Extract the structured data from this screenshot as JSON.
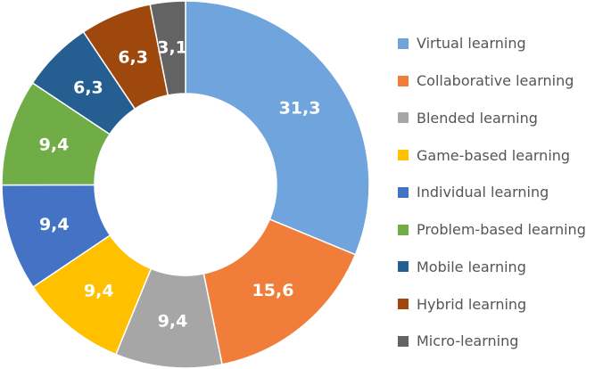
{
  "chart_data": {
    "type": "pie",
    "donut": true,
    "legend_position": "right",
    "categories": [
      "Virtual learning",
      "Collaborative learning",
      "Blended learning",
      "Game-based learning",
      "Individual learning",
      "Problem-based learning",
      "Mobile learning",
      "Hybrid learning",
      "Micro-learning"
    ],
    "values": [
      31.3,
      15.6,
      9.4,
      9.4,
      9.4,
      9.4,
      6.3,
      6.3,
      3.1
    ],
    "data_labels": [
      "31,3",
      "15,6",
      "9,4",
      "9,4",
      "9,4",
      "9,4",
      "6,3",
      "6,3",
      "3,1"
    ],
    "colors": [
      "#6fa5dc",
      "#f07e3a",
      "#a6a6a6",
      "#ffc000",
      "#4472c4",
      "#70ad47",
      "#255e91",
      "#9e480e",
      "#636363"
    ]
  }
}
